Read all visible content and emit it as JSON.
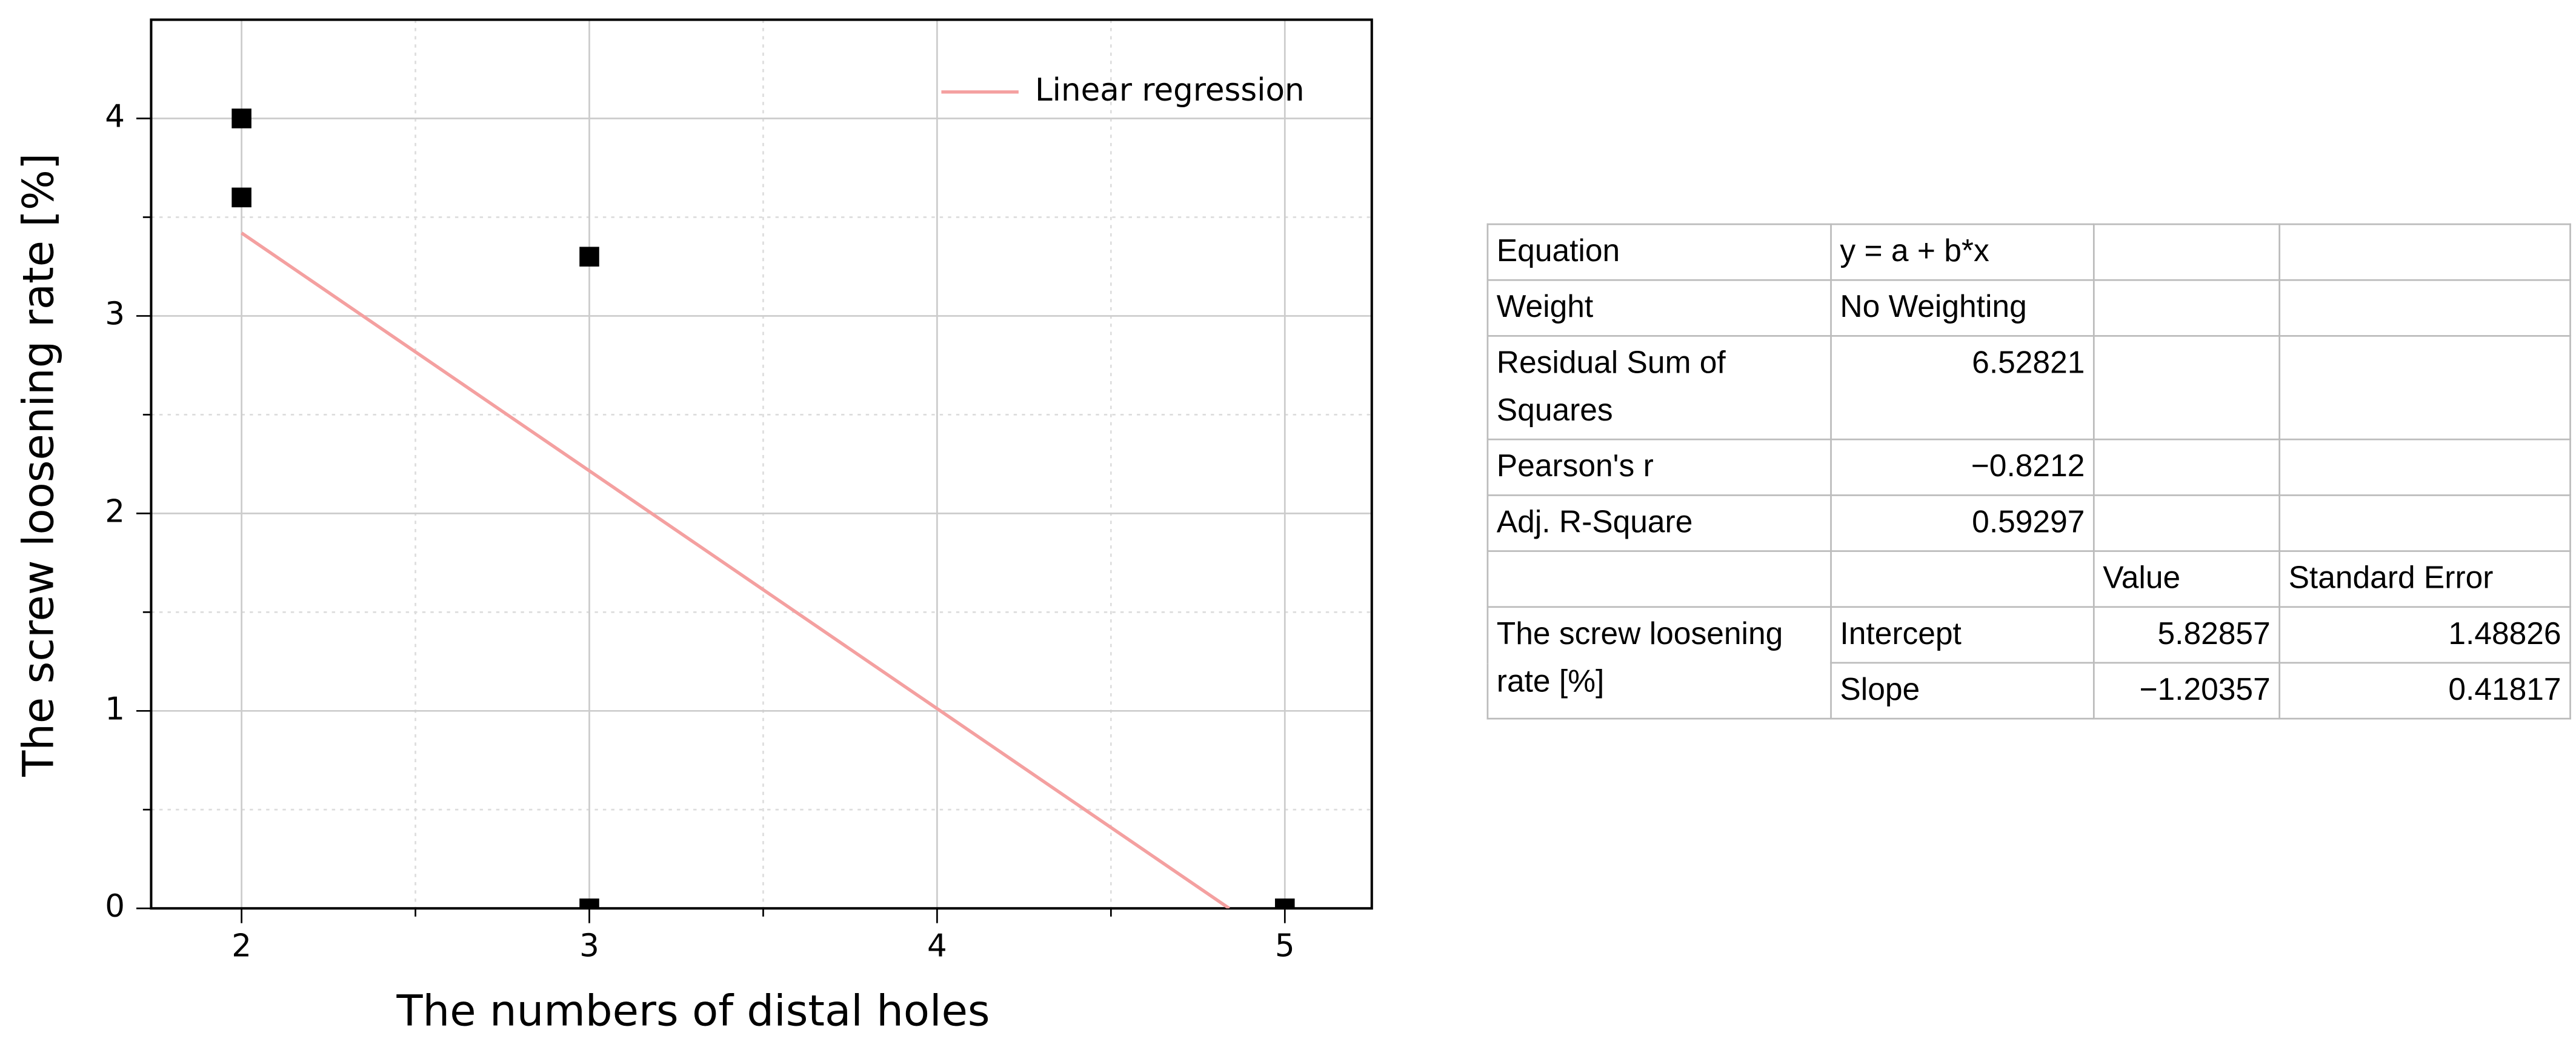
{
  "chart_data": {
    "type": "scatter",
    "x_label": "The numbers of distal holes",
    "y_label": "The screw loosening rate [%]",
    "xlim": [
      1.74,
      5.25
    ],
    "ylim": [
      0,
      4.5
    ],
    "xticks": [
      2,
      3,
      4,
      5
    ],
    "yticks": [
      0,
      1,
      2,
      3,
      4
    ],
    "xminor": [
      2.5,
      3.5,
      4.5
    ],
    "yminor": [
      0.5,
      1.5,
      2.5,
      3.5
    ],
    "grid": true,
    "legend": "upper right",
    "series": [
      {
        "type": "scatter",
        "color": "#000000",
        "x": [
          2,
          2,
          3,
          3,
          5
        ],
        "values": [
          4,
          3.6,
          3.3,
          0,
          0
        ]
      },
      {
        "type": "line",
        "name": "Linear regression",
        "color": "#f4a0a0",
        "x": [
          2,
          4.84
        ],
        "values": [
          3.42,
          0
        ]
      }
    ]
  },
  "table": {
    "rows": [
      [
        "Equation",
        "y = a + b*x",
        null,
        null
      ],
      [
        "Weight",
        "No Weighting",
        null,
        null
      ],
      [
        "Residual Sum of Squares",
        "6.52821",
        null,
        null
      ],
      [
        "Pearson's r",
        "−0.8212",
        null,
        null
      ],
      [
        "Adj. R-Square",
        "0.59297",
        null,
        null
      ],
      [
        null,
        null,
        "Value",
        "Standard Error"
      ],
      [
        "The screw loosening rate [%]",
        "Intercept",
        "5.82857",
        "1.48826"
      ],
      [
        null,
        "Slope",
        "−1.20357",
        "0.41817"
      ]
    ]
  }
}
